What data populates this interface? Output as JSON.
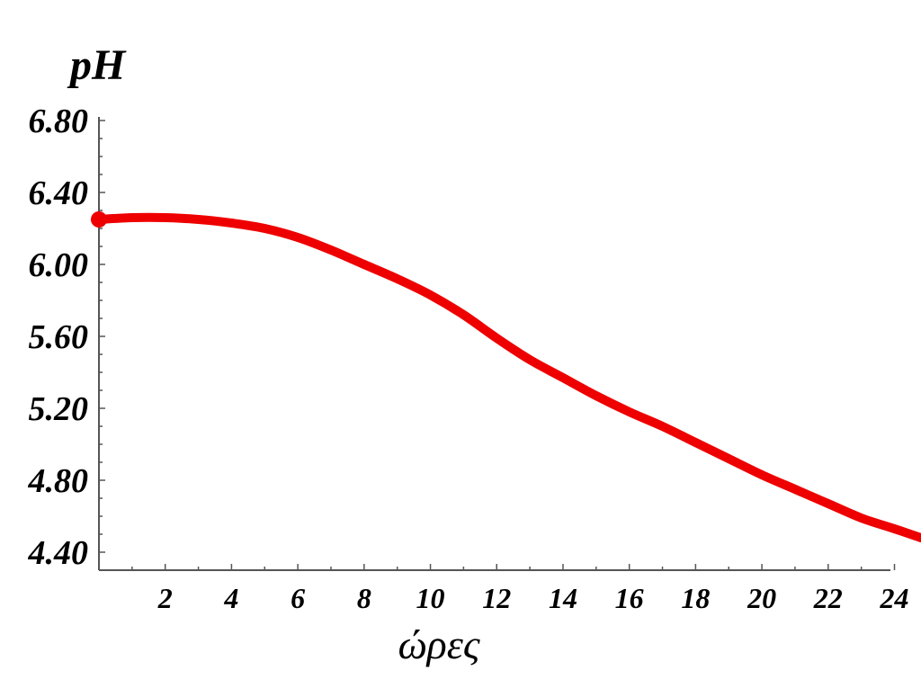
{
  "chart_data": {
    "type": "line",
    "ylabel": "pH",
    "xlabel": "ώρες",
    "xlim": [
      0,
      24.8
    ],
    "ylim": [
      4.3,
      6.82
    ],
    "x_ticks": [
      2,
      4,
      6,
      8,
      10,
      12,
      14,
      16,
      18,
      20,
      22,
      24
    ],
    "x_tick_labels": [
      "2",
      "4",
      "6",
      "8",
      "10",
      "12",
      "14",
      "16",
      "18",
      "20",
      "22",
      "24"
    ],
    "y_ticks": [
      4.4,
      4.8,
      5.2,
      5.6,
      6.0,
      6.4,
      6.8
    ],
    "y_tick_labels": [
      "4.40",
      "4.80",
      "5.20",
      "5.60",
      "6.00",
      "6.40",
      "6.80"
    ],
    "grid": false,
    "series": [
      {
        "color": "#ee0000",
        "x": [
          0,
          1,
          2,
          3,
          4,
          5,
          6,
          7,
          8,
          9,
          10,
          11,
          12,
          13,
          14,
          15,
          16,
          17,
          18,
          19,
          20,
          21,
          22,
          23,
          24,
          24.8
        ],
        "y": [
          6.25,
          6.26,
          6.26,
          6.25,
          6.23,
          6.2,
          6.15,
          6.08,
          6.0,
          5.92,
          5.83,
          5.72,
          5.59,
          5.47,
          5.37,
          5.27,
          5.18,
          5.1,
          5.01,
          4.92,
          4.83,
          4.75,
          4.67,
          4.59,
          4.53,
          4.48
        ]
      }
    ],
    "start_marker": {
      "x": 0,
      "y": 6.25
    }
  }
}
